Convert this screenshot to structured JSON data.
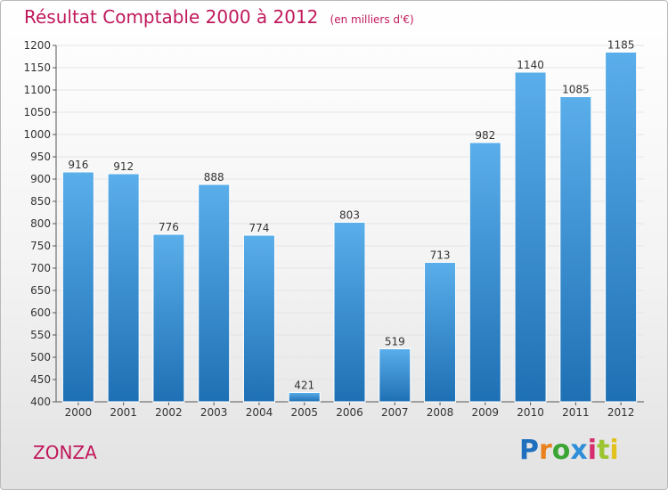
{
  "header": {
    "title": "Résultat Comptable 2000 à 2012",
    "subtitle": "(en milliers d'€)"
  },
  "footer": {
    "commune": "ZONZA",
    "logo_text": "Proxiti",
    "logo_colors": [
      "#1f6fbf",
      "#e9821e",
      "#3aa535",
      "#2f8ed8",
      "#d62d6e",
      "#9bc531",
      "#e2c21e"
    ]
  },
  "colors": {
    "title": "#c0185b",
    "bar_top": "#5aaeea",
    "bar_bottom": "#1e70b4",
    "grid": "#e4e4e4"
  },
  "chart_data": {
    "type": "bar",
    "title": "Résultat Comptable 2000 à 2012",
    "subtitle": "(en milliers d'€)",
    "categories": [
      "2000",
      "2001",
      "2002",
      "2003",
      "2004",
      "2005",
      "2006",
      "2007",
      "2008",
      "2009",
      "2010",
      "2011",
      "2012"
    ],
    "values": [
      916,
      912,
      776,
      888,
      774,
      421,
      803,
      519,
      713,
      982,
      1140,
      1085,
      1185
    ],
    "ylim": [
      400,
      1200
    ],
    "yticks": [
      400,
      450,
      500,
      550,
      600,
      650,
      700,
      750,
      800,
      850,
      900,
      950,
      1000,
      1050,
      1100,
      1150,
      1200
    ],
    "grid": true,
    "xlabel": "",
    "ylabel": ""
  }
}
